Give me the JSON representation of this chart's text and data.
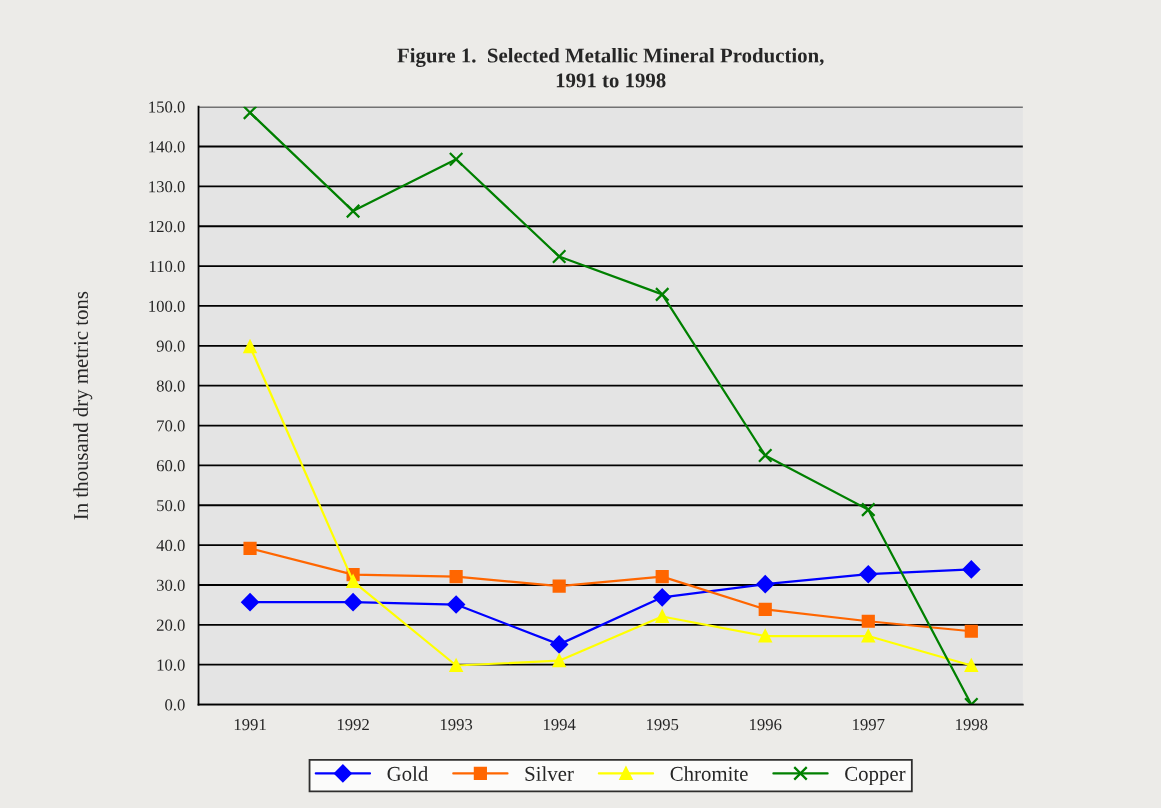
{
  "chart_data": {
    "type": "line",
    "title": "Figure 1.  Selected Metallic Mineral Production,\n1991 to 1998",
    "ylabel": "In thousand dry metric tons",
    "categories": [
      "1991",
      "1992",
      "1993",
      "1994",
      "1995",
      "1996",
      "1997",
      "1998"
    ],
    "series": [
      {
        "name": "Gold",
        "color": "#0000ff",
        "marker": "diamond",
        "values": [
          25.7,
          25.7,
          25.1,
          15.1,
          26.9,
          30.2,
          32.7,
          33.9
        ]
      },
      {
        "name": "Silver",
        "color": "#ff6600",
        "marker": "square",
        "values": [
          39.2,
          32.6,
          32.1,
          29.7,
          32.1,
          23.9,
          20.9,
          18.4
        ]
      },
      {
        "name": "Chromite",
        "color": "#ffff00",
        "marker": "triangle",
        "values": [
          89.8,
          30.9,
          9.8,
          11.0,
          22.1,
          17.2,
          17.2,
          9.8
        ]
      },
      {
        "name": "Copper",
        "color": "#008000",
        "marker": "cross",
        "values": [
          148.5,
          123.8,
          136.8,
          112.4,
          102.9,
          62.5,
          48.9,
          0.0
        ]
      }
    ],
    "ylim": [
      0.0,
      150.0
    ],
    "yticks": [
      {
        "value": 0,
        "label": "0.0"
      },
      {
        "value": 10,
        "label": "10.0"
      },
      {
        "value": 20,
        "label": "20.0"
      },
      {
        "value": 30,
        "label": "30.0"
      },
      {
        "value": 40,
        "label": "40.0"
      },
      {
        "value": 50,
        "label": "50.0"
      },
      {
        "value": 60,
        "label": "60.0"
      },
      {
        "value": 70,
        "label": "70.0"
      },
      {
        "value": 80,
        "label": "80.0"
      },
      {
        "value": 90,
        "label": "90.0"
      },
      {
        "value": 100,
        "label": "100.0"
      },
      {
        "value": 110,
        "label": "110.0"
      },
      {
        "value": 120,
        "label": "120.0"
      },
      {
        "value": 130,
        "label": "130.0"
      },
      {
        "value": 140,
        "label": "140.0"
      },
      {
        "value": 150,
        "label": "150.0"
      }
    ],
    "grid": "y",
    "legend": "bottom",
    "line_style": "solid"
  }
}
